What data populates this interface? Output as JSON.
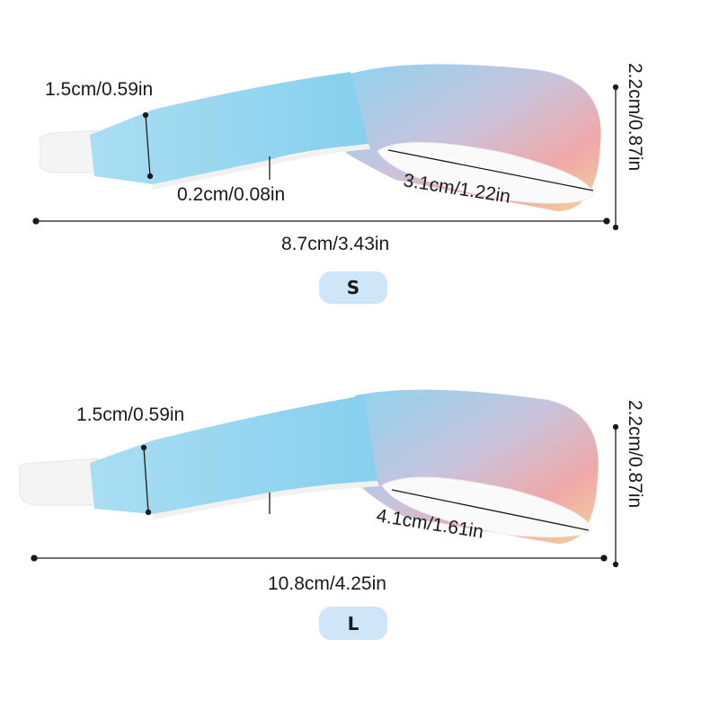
{
  "colors": {
    "badge": "#cfe6f8",
    "strap_blue": "#8fd3ef",
    "strap_pink": "#f0a8a8",
    "strap_yellow": "#f3d39a",
    "line": "#1a1a1a"
  },
  "size_s": {
    "badge": "S",
    "width_label": "1.5cm/0.59in",
    "thickness_label": "0.2cm/0.08in",
    "loop_label": "3.1cm/1.22in",
    "length_label": "8.7cm/3.43in",
    "height_label": "2.2cm/0.87in"
  },
  "size_l": {
    "badge": "L",
    "width_label": "1.5cm/0.59in",
    "loop_label": "4.1cm/1.61in",
    "length_label": "10.8cm/4.25in",
    "height_label": "2.2cm/0.87in"
  }
}
